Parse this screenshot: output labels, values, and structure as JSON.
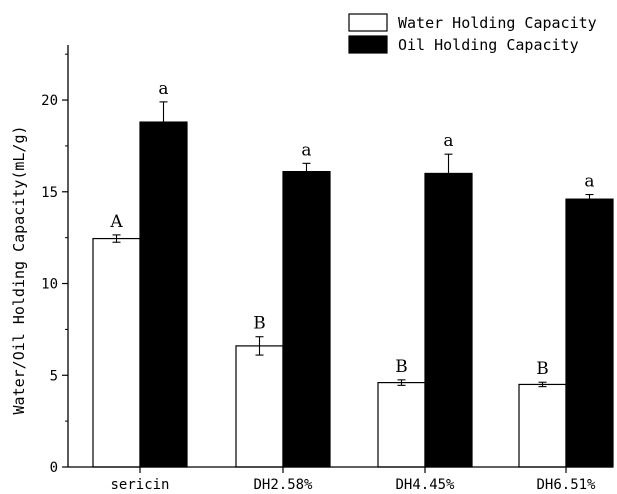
{
  "chart_data": {
    "type": "bar",
    "categories": [
      "sericin",
      "DH2.58%",
      "DH4.45%",
      "DH6.51%"
    ],
    "ylabel": "Water/Oil Holding Capacity(mL/g)",
    "xlabel": "",
    "ylim": [
      0,
      23
    ],
    "yticks": [
      0,
      5,
      10,
      15,
      20
    ],
    "legend_position": "top-right",
    "series": [
      {
        "name": "Water Holding Capacity",
        "color": "#ffffff",
        "values": [
          12.45,
          6.6,
          4.6,
          4.5
        ],
        "errors": [
          0.2,
          0.5,
          0.15,
          0.12
        ],
        "sig_labels": [
          "A",
          "B",
          "B",
          "B"
        ]
      },
      {
        "name": "Oil Holding Capacity",
        "color": "#000000",
        "values": [
          18.8,
          16.1,
          16.0,
          14.6
        ],
        "errors": [
          1.1,
          0.45,
          1.05,
          0.25
        ],
        "sig_labels": [
          "a",
          "a",
          "a",
          "a"
        ]
      }
    ]
  }
}
